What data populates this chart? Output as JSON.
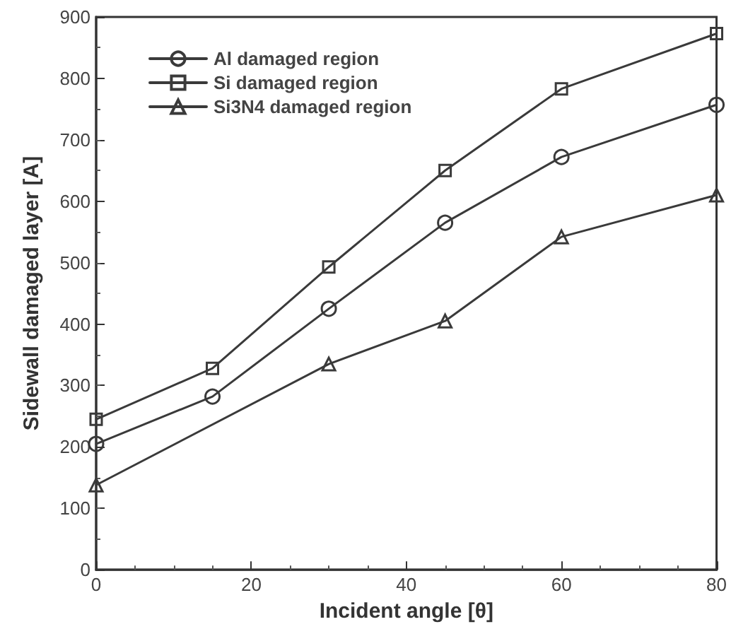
{
  "chart_data": {
    "type": "line",
    "xlabel": "Incident angle [θ]",
    "ylabel": "Sidewall damaged layer [A]",
    "xlim": [
      0,
      80
    ],
    "xticks": [
      0,
      20,
      40,
      60,
      80
    ],
    "ylim": [
      0,
      900
    ],
    "yticks": [
      0,
      100,
      200,
      300,
      400,
      500,
      600,
      700,
      800,
      900
    ],
    "grid": false,
    "legend": "top left",
    "line_style": "solid",
    "series": [
      {
        "name": "Al damaged region",
        "color": "#3a3a3a",
        "marker": "circle",
        "x": [
          0,
          15,
          30,
          45,
          60,
          80
        ],
        "values": [
          205,
          282,
          425,
          565,
          672,
          757
        ]
      },
      {
        "name": "Si damaged region",
        "color": "#3a3a3a",
        "marker": "square",
        "x": [
          0,
          15,
          30,
          45,
          60,
          80
        ],
        "values": [
          245,
          328,
          493,
          650,
          783,
          873
        ]
      },
      {
        "name": "Si3N4 damaged region",
        "color": "#3a3a3a",
        "marker": "triangle",
        "x": [
          0,
          30,
          45,
          60,
          80
        ],
        "values": [
          138,
          335,
          405,
          542,
          610
        ]
      }
    ]
  }
}
